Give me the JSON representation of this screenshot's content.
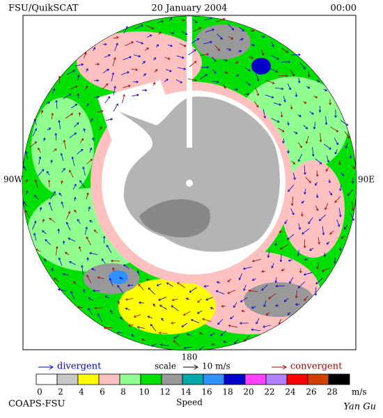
{
  "header": {
    "left": "FSU/QuikSCAT",
    "date": "20 January 2004",
    "time": "00:00"
  },
  "map": {
    "labels": {
      "west": "90W",
      "east": "90E",
      "south": "180"
    }
  },
  "legend": {
    "divergent": "divergent",
    "scale": "scale",
    "scale_value": "10 m/s",
    "convergent": "convergent"
  },
  "colorbar": {
    "ticks": [
      0,
      2,
      4,
      6,
      8,
      10,
      12,
      14,
      16,
      18,
      20,
      22,
      24,
      26,
      28
    ],
    "colors": [
      "#ffffff",
      "#c8c8c8",
      "#ffff00",
      "#ffc0c0",
      "#90ff90",
      "#00e000",
      "#999999",
      "#00a8a8",
      "#3090ff",
      "#0000c8",
      "#ff40ff",
      "#b080ff",
      "#ff0000",
      "#d04000",
      "#000000"
    ],
    "unit": "m/s",
    "title": "Speed"
  },
  "footer": {
    "left": "COAPS-FSU",
    "right": "Yan Gu"
  }
}
